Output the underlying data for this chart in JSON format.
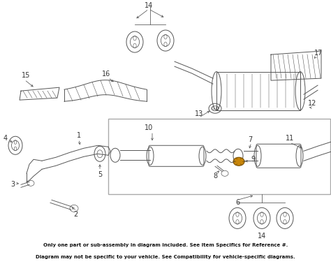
{
  "bg_color": "#ffffff",
  "footer_bg": "#f0a500",
  "footer_text_color": "#111111",
  "line_color": "#555555",
  "highlight_color": "#c8860a",
  "fig_width": 4.74,
  "fig_height": 3.78,
  "dpi": 100,
  "footer_line1": "Only one part or sub-assembly in diagram included. See Item Specifics for Reference #.",
  "footer_line2": "Diagram may not be specific to your vehicle. See Compatibility for vehicle-specific diagrams."
}
